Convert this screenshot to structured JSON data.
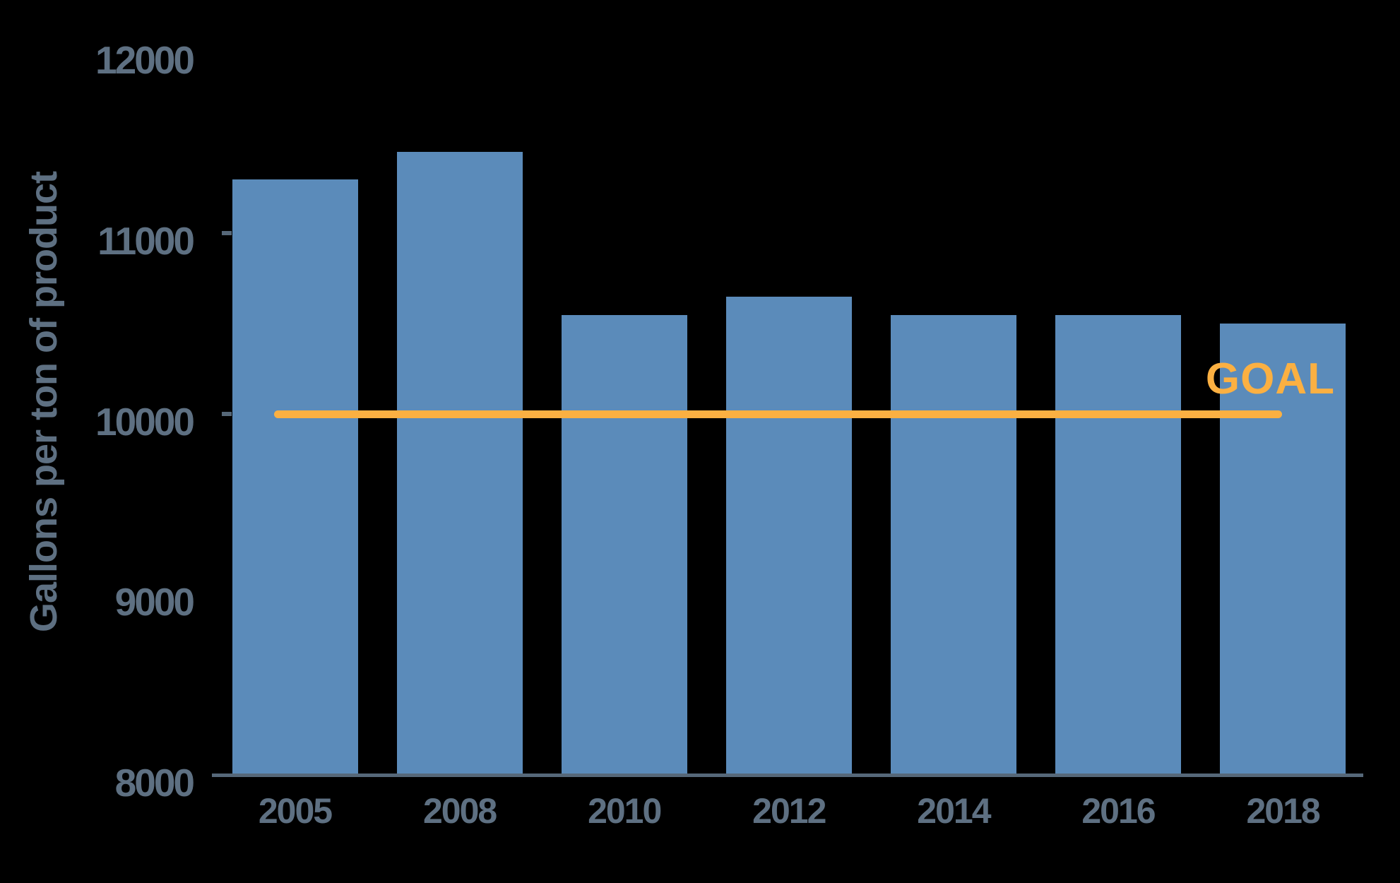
{
  "chart_data": {
    "type": "bar",
    "title": "",
    "ylabel": "Gallons per ton of product",
    "xlabel": "",
    "categories": [
      "2005",
      "2008",
      "2010",
      "2012",
      "2014",
      "2016",
      "2018"
    ],
    "values": [
      11340,
      11490,
      10590,
      10690,
      10590,
      10590,
      10540
    ],
    "yticks": [
      8000,
      9000,
      10000,
      11000,
      12000
    ],
    "ylim": [
      8000,
      12000
    ],
    "grid": "off",
    "legend": "none",
    "goal_line": {
      "label": "GOAL",
      "value": 10040,
      "from_category": "2005",
      "to_category": "2018"
    }
  },
  "colors": {
    "background": "#000000",
    "bar": "#5b8bba",
    "goal": "#fbb042",
    "text": "#5e7082",
    "axis": "#566879"
  }
}
